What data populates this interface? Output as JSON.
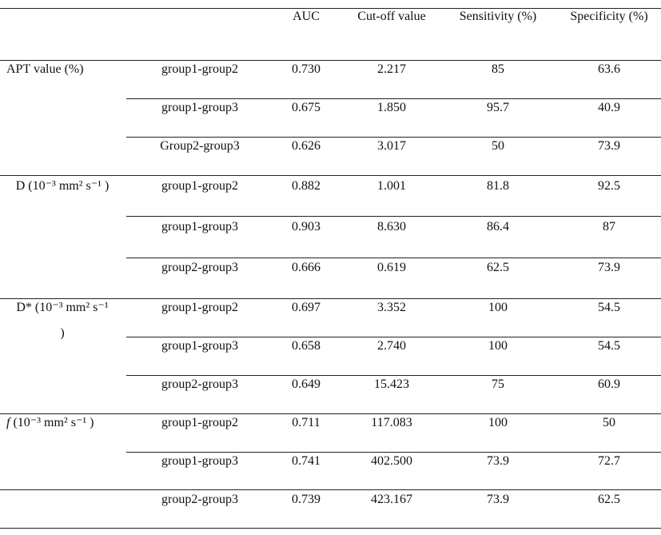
{
  "header": {
    "columns": [
      "AUC",
      "Cut-off value",
      "Sensitivity (%)",
      "Specificity (%)"
    ]
  },
  "groups": [
    {
      "label": "APT value (%)",
      "rows": [
        [
          "group1-group2",
          "0.730",
          "2.217",
          "85",
          "63.6"
        ],
        [
          "group1-group3",
          "0.675",
          "1.850",
          "95.7",
          "40.9"
        ],
        [
          "Group2-group3",
          "0.626",
          "3.017",
          "50",
          "73.9"
        ]
      ]
    },
    {
      "label": "D (10⁻³ mm² s⁻¹ )",
      "rows": [
        [
          "group1-group2",
          "0.882",
          "1.001",
          "81.8",
          "92.5"
        ],
        [
          "group1-group3",
          "0.903",
          "8.630",
          "86.4",
          "87"
        ],
        [
          "group2-group3",
          "0.666",
          "0.619",
          "62.5",
          "73.9"
        ]
      ]
    },
    {
      "label": "D* (10⁻³ mm² s⁻¹ )",
      "rows": [
        [
          "group1-group2",
          "0.697",
          "3.352",
          "100",
          "54.5"
        ],
        [
          "group1-group3",
          "0.658",
          "2.740",
          "100",
          "54.5"
        ],
        [
          "group2-group3",
          "0.649",
          "15.423",
          "75",
          "60.9"
        ]
      ]
    },
    {
      "label": "f (10⁻³ mm² s⁻¹ )",
      "rows": [
        [
          "group1-group2",
          "0.711",
          "117.083",
          "100",
          "50"
        ],
        [
          "group1-group3",
          "0.741",
          "402.500",
          "73.9",
          "72.7"
        ],
        [
          "group2-group3",
          "0.739",
          "423.167",
          "73.9",
          "62.5"
        ]
      ]
    }
  ]
}
